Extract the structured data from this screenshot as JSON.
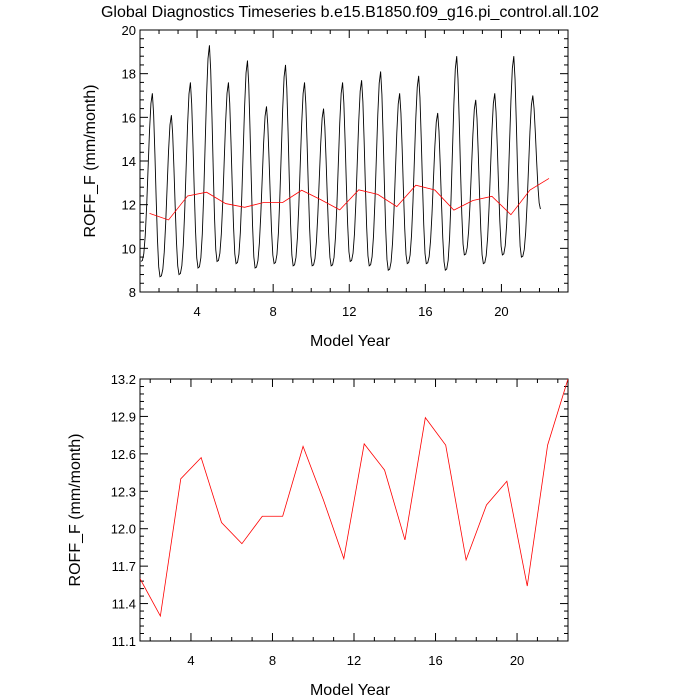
{
  "title": "Global Diagnostics Timeseries b.e15.B1850.f09_g16.pi_control.all.102",
  "chart_data": [
    {
      "type": "line",
      "xlabel": "Model Year",
      "ylabel": "ROFF_F (mm/month)",
      "xlim": [
        1,
        23.5
      ],
      "ylim": [
        8,
        20
      ],
      "xticks": [
        4,
        8,
        12,
        16,
        20
      ],
      "yticks": [
        8,
        10,
        12,
        14,
        16,
        18,
        20
      ],
      "xtick_labels": [
        "4",
        "8",
        "12",
        "16",
        "20"
      ],
      "ytick_labels": [
        "8",
        "10",
        "12",
        "14",
        "16",
        "18",
        "20"
      ],
      "grid": false,
      "series": [
        {
          "color": "#000000",
          "peaks": [
            17.1,
            16.1,
            17.6,
            19.3,
            17.6,
            18.6,
            16.5,
            18.4,
            17.6,
            16.4,
            17.6,
            17.7,
            18.1,
            17.1,
            17.9,
            16.2,
            18.8,
            16.8,
            17.1,
            18.8,
            17.0
          ],
          "troughs": [
            9.4,
            8.7,
            8.8,
            9.1,
            9.4,
            9.3,
            9.1,
            9.3,
            9.2,
            9.2,
            9.2,
            9.4,
            9.2,
            9.0,
            9.3,
            9.3,
            9.0,
            9.7,
            9.3,
            9.7,
            9.6,
            11.8
          ]
        },
        {
          "color": "#ff0000",
          "x": [
            1.5,
            2.5,
            3.5,
            4.5,
            5.5,
            6.5,
            7.5,
            8.5,
            9.5,
            10.5,
            11.5,
            12.5,
            13.5,
            14.5,
            15.5,
            16.5,
            17.5,
            18.5,
            19.5,
            20.5,
            21.5,
            22.5
          ],
          "values": [
            11.6,
            11.3,
            12.4,
            12.57,
            12.05,
            11.88,
            12.1,
            12.1,
            12.66,
            12.23,
            11.76,
            12.68,
            12.47,
            11.91,
            12.89,
            12.67,
            11.75,
            12.19,
            12.38,
            11.54,
            12.67,
            13.2
          ]
        }
      ]
    },
    {
      "type": "line",
      "xlabel": "Model Year",
      "ylabel": "ROFF_F (mm/month)",
      "xlim": [
        1.5,
        22.5
      ],
      "ylim": [
        11.1,
        13.2
      ],
      "xticks": [
        4,
        8,
        12,
        16,
        20
      ],
      "yticks": [
        11.1,
        11.4,
        11.7,
        12.0,
        12.3,
        12.6,
        12.9,
        13.2
      ],
      "xtick_labels": [
        "4",
        "8",
        "12",
        "16",
        "20"
      ],
      "ytick_labels": [
        "11.1",
        "11.4",
        "11.7",
        "12.0",
        "12.3",
        "12.6",
        "12.9",
        "13.2"
      ],
      "grid": false,
      "series": [
        {
          "color": "#ff0000",
          "x": [
            1.5,
            2.5,
            3.5,
            4.5,
            5.5,
            6.5,
            7.5,
            8.5,
            9.5,
            10.5,
            11.5,
            12.5,
            13.5,
            14.5,
            15.5,
            16.5,
            17.5,
            18.5,
            19.5,
            20.5,
            21.5,
            22.5
          ],
          "values": [
            11.6,
            11.3,
            12.4,
            12.57,
            12.05,
            11.88,
            12.1,
            12.1,
            12.66,
            12.23,
            11.76,
            12.68,
            12.47,
            11.91,
            12.89,
            12.67,
            11.75,
            12.19,
            12.38,
            11.54,
            12.67,
            13.2
          ]
        }
      ]
    }
  ]
}
